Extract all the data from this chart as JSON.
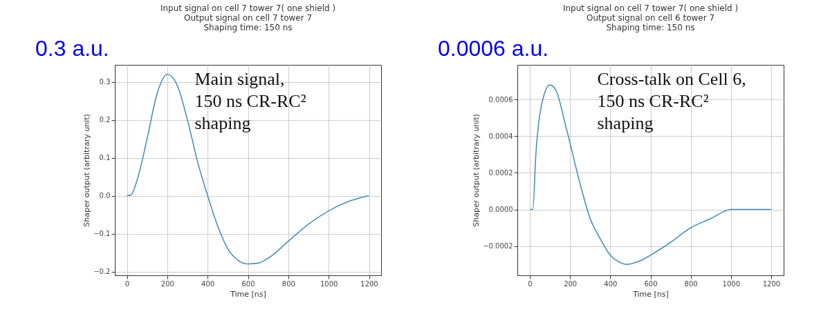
{
  "chart_data": [
    {
      "type": "line",
      "title": "Input signal on cell 7 tower 7( one shield )\nOutput signal on cell 7 tower 7\nShaping time: 150 ns",
      "xlabel": "Time [ns]",
      "ylabel": "Shaper output (arbitrary unit)",
      "x": [
        0,
        20,
        50,
        100,
        150,
        200,
        250,
        300,
        350,
        400,
        450,
        500,
        550,
        600,
        650,
        700,
        800,
        900,
        1000,
        1100,
        1200
      ],
      "series": [
        {
          "color": "#4a90b8",
          "values": [
            0,
            0.002,
            0.04,
            0.15,
            0.27,
            0.32,
            0.29,
            0.2,
            0.09,
            0.0,
            -0.08,
            -0.14,
            -0.17,
            -0.18,
            -0.178,
            -0.165,
            -0.12,
            -0.075,
            -0.04,
            -0.015,
            0
          ]
        }
      ],
      "xlim": [
        -60,
        1260
      ],
      "ylim": [
        -0.21,
        0.345
      ],
      "xticks": [
        0,
        200,
        400,
        600,
        800,
        1000,
        1200
      ],
      "yticks": [
        {
          "value": -0.2,
          "label": "−0.2"
        },
        {
          "value": -0.1,
          "label": "−0.1"
        },
        {
          "value": 0,
          "label": "0.0"
        },
        {
          "value": 0.1,
          "label": "0.1"
        },
        {
          "value": 0.2,
          "label": "0.2"
        },
        {
          "value": 0.3,
          "label": "0.3"
        }
      ],
      "grid": true,
      "annotations": [
        "0.3 a.u.",
        "Main signal,\n150 ns CR-RC²\nshaping"
      ]
    },
    {
      "type": "line",
      "title": "Input signal on cell 7 tower 7( one shield )\nOutput signal on cell 6 tower 7\nShaping time: 150 ns",
      "xlabel": "Time [ns]",
      "ylabel": "Shaper output (arbitrary unit)",
      "x": [
        0,
        15,
        30,
        60,
        100,
        130,
        180,
        250,
        300,
        350,
        400,
        450,
        480,
        550,
        600,
        700,
        800,
        900,
        1000,
        1100,
        1200
      ],
      "series": [
        {
          "color": "#4a90b8",
          "values": [
            0,
            0,
            0.0003,
            0.00058,
            0.00068,
            0.00065,
            0.00045,
            0.00014,
            -5e-05,
            -0.00016,
            -0.00025,
            -0.00029,
            -0.0003,
            -0.00028,
            -0.00025,
            -0.00018,
            -0.0001,
            -5e-05,
            0,
            0,
            0
          ]
        }
      ],
      "xlim": [
        -62,
        1262
      ],
      "ylim": [
        -0.00036,
        0.00079
      ],
      "xticks": [
        0,
        200,
        400,
        600,
        800,
        1000,
        1200
      ],
      "yticks": [
        {
          "value": -0.0002,
          "label": "−0.0002"
        },
        {
          "value": 0,
          "label": "0.0000"
        },
        {
          "value": 0.0002,
          "label": "0.0002"
        },
        {
          "value": 0.0004,
          "label": "0.0004"
        },
        {
          "value": 0.0006,
          "label": "0.0006"
        }
      ],
      "grid": true,
      "annotations": [
        "0.0006 a.u.",
        "Cross-talk on Cell 6,\n 150 ns CR-RC²\nshaping"
      ]
    }
  ]
}
